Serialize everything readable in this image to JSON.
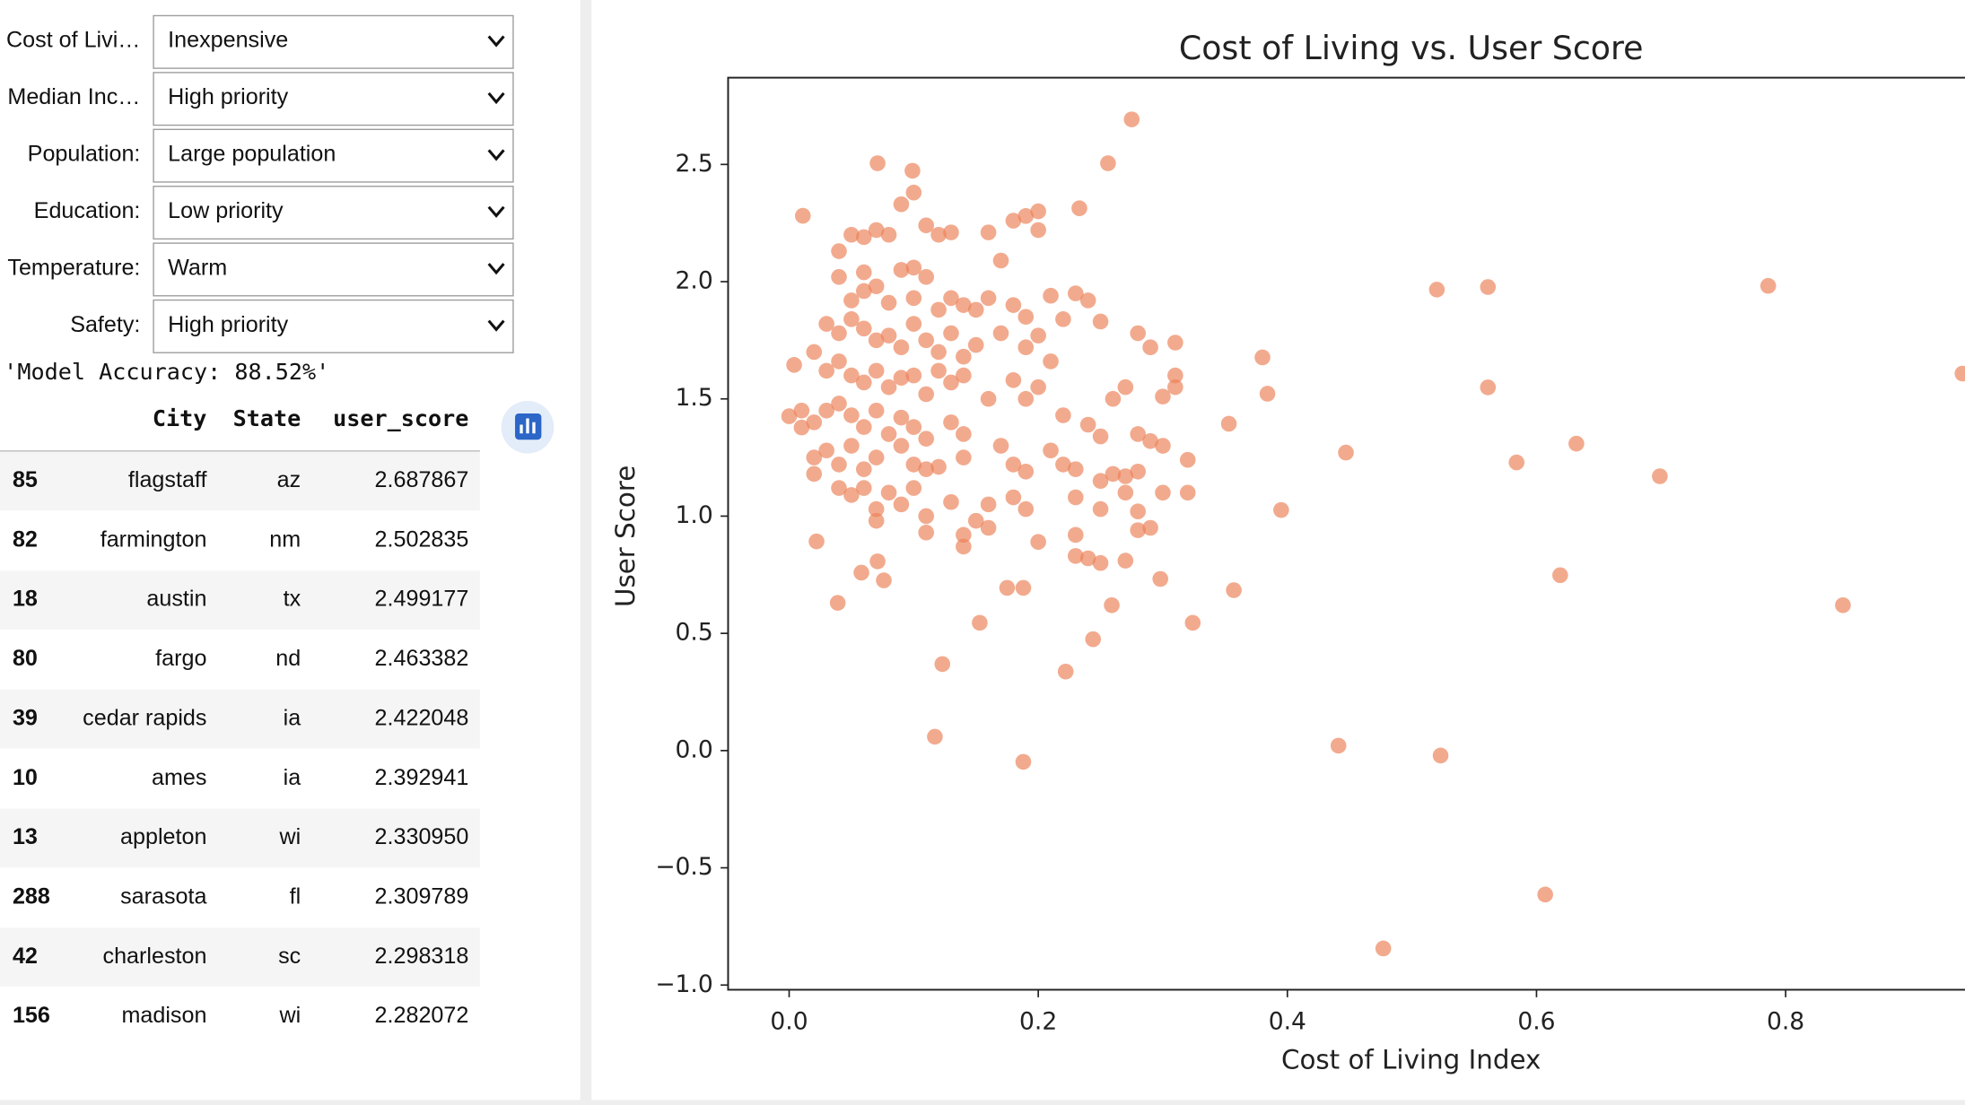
{
  "widgets": [
    {
      "label": "Cost of Livi…",
      "value": "Inexpensive"
    },
    {
      "label": "Median Inc…",
      "value": "High priority"
    },
    {
      "label": "Population:",
      "value": "Large population"
    },
    {
      "label": "Education:",
      "value": "Low priority"
    },
    {
      "label": "Temperature:",
      "value": "Warm"
    },
    {
      "label": "Safety:",
      "value": "High priority"
    }
  ],
  "output_text": "'Model Accuracy: 88.52%'",
  "table": {
    "columns": [
      "City",
      "State",
      "user_score"
    ],
    "rows": [
      [
        "85",
        "flagstaff",
        "az",
        "2.687867"
      ],
      [
        "82",
        "farmington",
        "nm",
        "2.502835"
      ],
      [
        "18",
        "austin",
        "tx",
        "2.499177"
      ],
      [
        "80",
        "fargo",
        "nd",
        "2.463382"
      ],
      [
        "39",
        "cedar rapids",
        "ia",
        "2.422048"
      ],
      [
        "10",
        "ames",
        "ia",
        "2.392941"
      ],
      [
        "13",
        "appleton",
        "wi",
        "2.330950"
      ],
      [
        "288",
        "sarasota",
        "fl",
        "2.309789"
      ],
      [
        "42",
        "charleston",
        "sc",
        "2.298318"
      ],
      [
        "156",
        "madison",
        "wi",
        "2.282072"
      ]
    ]
  },
  "chart_data": {
    "type": "scatter",
    "title": "Cost of Living vs. User Score",
    "x_label": "Cost of Living Index",
    "y_label": "User Score",
    "color": "#ec8258",
    "xlim": [
      -0.049,
      0.944
    ],
    "ylim": [
      -1.02,
      2.87
    ],
    "xticks": [
      {
        "value": 0,
        "label": "0.0"
      },
      0.2,
      0.4,
      0.6,
      0.8
    ],
    "yticks": [
      {
        "value": -1,
        "label": "−1.0"
      },
      {
        "value": -0.5,
        "label": "−0.5"
      },
      {
        "value": 0,
        "label": "0.0"
      },
      0.5,
      {
        "value": 1,
        "label": "1.0"
      },
      1.5,
      {
        "value": 2,
        "label": "2.0"
      },
      2.5
    ],
    "x": [
      0.52,
      0.561,
      0.786,
      0.942,
      0.38,
      0.384,
      0.353,
      0.447,
      0.561,
      0.632,
      0.584,
      0.699,
      0.395,
      0.619,
      0.846,
      0.357,
      0.324,
      0.441,
      0.523,
      0.607,
      0.477,
      0.275,
      0.256,
      0.233,
      0.011,
      0.071,
      0.099,
      0.117,
      0.188,
      0.123,
      0.222,
      0.039,
      0.022,
      0.153,
      0.244,
      0.259,
      0.298,
      0.175,
      0.188,
      0.076,
      0.058,
      0.071,
      0.0,
      0.004,
      0.01,
      0.05,
      0.06,
      0.07,
      0.08,
      0.09,
      0.1,
      0.11,
      0.12,
      0.13,
      0.16,
      0.18,
      0.19,
      0.2,
      0.2,
      0.17,
      0.04,
      0.04,
      0.06,
      0.07,
      0.09,
      0.1,
      0.11,
      0.05,
      0.06,
      0.08,
      0.1,
      0.12,
      0.13,
      0.14,
      0.15,
      0.16,
      0.18,
      0.19,
      0.21,
      0.22,
      0.23,
      0.24,
      0.25,
      0.03,
      0.04,
      0.05,
      0.06,
      0.07,
      0.08,
      0.09,
      0.1,
      0.11,
      0.12,
      0.13,
      0.14,
      0.15,
      0.17,
      0.19,
      0.2,
      0.21,
      0.28,
      0.29,
      0.31,
      0.02,
      0.03,
      0.04,
      0.05,
      0.06,
      0.07,
      0.08,
      0.09,
      0.1,
      0.11,
      0.12,
      0.13,
      0.14,
      0.16,
      0.18,
      0.19,
      0.2,
      0.27,
      0.26,
      0.31,
      0.31,
      0.3,
      0.01,
      0.02,
      0.03,
      0.04,
      0.05,
      0.06,
      0.07,
      0.08,
      0.09,
      0.1,
      0.11,
      0.13,
      0.14,
      0.22,
      0.24,
      0.25,
      0.28,
      0.29,
      0.3,
      0.02,
      0.03,
      0.04,
      0.05,
      0.06,
      0.07,
      0.09,
      0.1,
      0.11,
      0.12,
      0.14,
      0.17,
      0.18,
      0.19,
      0.21,
      0.22,
      0.23,
      0.25,
      0.26,
      0.27,
      0.28,
      0.32,
      0.02,
      0.04,
      0.05,
      0.06,
      0.07,
      0.08,
      0.09,
      0.1,
      0.11,
      0.13,
      0.14,
      0.15,
      0.16,
      0.18,
      0.19,
      0.23,
      0.25,
      0.27,
      0.28,
      0.29,
      0.3,
      0.32,
      0.07,
      0.11,
      0.14,
      0.16,
      0.2,
      0.23,
      0.24,
      0.25,
      0.27,
      0.28,
      0.23
    ],
    "values": [
      1.966,
      1.977,
      1.982,
      1.608,
      1.677,
      1.522,
      1.394,
      1.271,
      1.549,
      1.309,
      1.229,
      1.17,
      1.026,
      0.748,
      0.62,
      0.684,
      0.545,
      0.021,
      -0.021,
      -0.614,
      -0.844,
      2.692,
      2.505,
      2.313,
      2.281,
      2.505,
      2.473,
      0.059,
      -0.048,
      0.369,
      0.337,
      0.63,
      0.892,
      0.545,
      0.475,
      0.62,
      0.732,
      0.694,
      0.694,
      0.726,
      0.759,
      0.807,
      1.426,
      1.645,
      1.378,
      2.2,
      2.19,
      2.22,
      2.2,
      2.33,
      2.38,
      2.24,
      2.2,
      2.21,
      2.21,
      2.26,
      2.28,
      2.3,
      2.22,
      2.09,
      2.13,
      2.02,
      2.04,
      1.98,
      2.05,
      2.06,
      2.02,
      1.92,
      1.96,
      1.91,
      1.93,
      1.88,
      1.93,
      1.9,
      1.88,
      1.93,
      1.9,
      1.85,
      1.94,
      1.84,
      1.95,
      1.92,
      1.83,
      1.82,
      1.78,
      1.84,
      1.8,
      1.75,
      1.77,
      1.72,
      1.82,
      1.75,
      1.7,
      1.78,
      1.68,
      1.73,
      1.78,
      1.72,
      1.77,
      1.66,
      1.78,
      1.72,
      1.74,
      1.7,
      1.62,
      1.66,
      1.6,
      1.57,
      1.62,
      1.55,
      1.59,
      1.6,
      1.52,
      1.62,
      1.57,
      1.6,
      1.5,
      1.58,
      1.5,
      1.55,
      1.55,
      1.5,
      1.6,
      1.55,
      1.51,
      1.45,
      1.4,
      1.45,
      1.48,
      1.43,
      1.38,
      1.45,
      1.35,
      1.42,
      1.38,
      1.33,
      1.4,
      1.35,
      1.43,
      1.39,
      1.34,
      1.35,
      1.32,
      1.3,
      1.25,
      1.28,
      1.22,
      1.3,
      1.2,
      1.25,
      1.3,
      1.22,
      1.2,
      1.21,
      1.25,
      1.3,
      1.22,
      1.19,
      1.28,
      1.22,
      1.2,
      1.15,
      1.18,
      1.17,
      1.19,
      1.24,
      1.18,
      1.12,
      1.09,
      1.12,
      1.03,
      1.1,
      1.05,
      1.12,
      1.0,
      1.06,
      0.92,
      0.98,
      1.05,
      1.08,
      1.03,
      1.08,
      1.03,
      1.1,
      1.02,
      0.95,
      1.1,
      1.1,
      0.98,
      0.93,
      0.87,
      0.95,
      0.89,
      0.92,
      0.82,
      0.8,
      0.81,
      0.94,
      0.83
    ]
  }
}
